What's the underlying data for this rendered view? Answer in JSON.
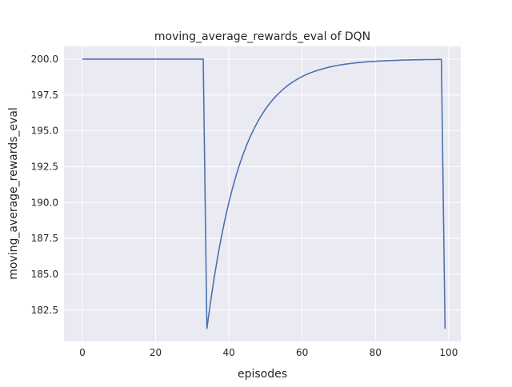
{
  "chart_data": {
    "type": "line",
    "title": "moving_average_rewards_eval of DQN",
    "xlabel": "episodes",
    "ylabel": "moving_average_rewards_eval",
    "xlim": [
      -5,
      103.3
    ],
    "ylim": [
      180.32,
      200.89
    ],
    "xticks": [
      0,
      20,
      40,
      60,
      80,
      100
    ],
    "xtick_labels": [
      "0",
      "20",
      "40",
      "60",
      "80",
      "100"
    ],
    "yticks": [
      182.5,
      185.0,
      187.5,
      190.0,
      192.5,
      195.0,
      197.5,
      200.0
    ],
    "ytick_labels": [
      "182.5",
      "185.0",
      "187.5",
      "190.0",
      "192.5",
      "195.0",
      "197.5",
      "200.0"
    ],
    "grid": true,
    "style": "darkgrid",
    "colors": {
      "background": "#eaeaf2",
      "grid": "#ffffff",
      "line": "#4c72b0"
    },
    "series": [
      {
        "x_start": 0,
        "values": [
          200,
          200,
          200,
          200,
          200,
          200,
          200,
          200,
          200,
          200,
          200,
          200,
          200,
          200,
          200,
          200,
          200,
          200,
          200,
          200,
          200,
          200,
          200,
          200,
          200,
          200,
          200,
          200,
          200,
          200,
          200,
          200,
          200,
          200,
          181.2,
          183.08,
          184.77,
          186.29,
          187.67,
          188.9,
          190.01,
          191.01,
          191.91,
          192.72,
          193.44,
          194.1,
          194.69,
          195.22,
          195.7,
          196.13,
          196.52,
          196.86,
          197.18,
          197.46,
          197.71,
          197.94,
          198.15,
          198.33,
          198.5,
          198.65,
          198.79,
          198.91,
          199.02,
          199.11,
          199.2,
          199.28,
          199.35,
          199.42,
          199.48,
          199.53,
          199.58,
          199.62,
          199.66,
          199.69,
          199.72,
          199.75,
          199.77,
          199.8,
          199.82,
          199.84,
          199.85,
          199.87,
          199.88,
          199.89,
          199.9,
          199.91,
          199.92,
          199.93,
          199.94,
          199.94,
          199.95,
          199.95,
          199.96,
          199.96,
          199.97,
          199.97,
          199.97,
          199.98,
          199.98,
          181.2
        ]
      }
    ]
  }
}
